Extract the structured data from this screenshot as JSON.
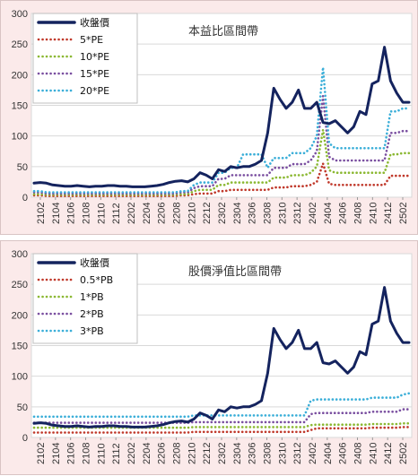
{
  "chart_data": [
    {
      "type": "line",
      "title": "本益比區間帶",
      "xlabel": "",
      "ylabel": "",
      "ylim": [
        0,
        300
      ],
      "yticks": [
        "0",
        "50",
        "100",
        "150",
        "200",
        "250",
        "300"
      ],
      "xtick_labels": [
        "2102",
        "2104",
        "2106",
        "2108",
        "2110",
        "2112",
        "2202",
        "2204",
        "2206",
        "2208",
        "2210",
        "2212",
        "2302",
        "2304",
        "2306",
        "2308",
        "2310",
        "2312",
        "2402",
        "2404",
        "2406",
        "2408",
        "2410",
        "2412",
        "2502"
      ],
      "grid": "horizontal",
      "legend_position": "top-left",
      "series": [
        {
          "name": "收盤價",
          "color": "#14235e",
          "style": "solid",
          "values": [
            23,
            24,
            23,
            20,
            19,
            18,
            18,
            19,
            18,
            17,
            18,
            18,
            19,
            19,
            18,
            18,
            17,
            17,
            17,
            18,
            19,
            21,
            24,
            26,
            27,
            25,
            30,
            40,
            36,
            30,
            45,
            42,
            50,
            48,
            50,
            50,
            54,
            60,
            105,
            178,
            160,
            145,
            155,
            175,
            145,
            145,
            155,
            122,
            120,
            125,
            115,
            105,
            115,
            140,
            135,
            185,
            190,
            245,
            190,
            170,
            155,
            155
          ]
        },
        {
          "name": "5*PE",
          "color": "#c0392b",
          "style": "dotted",
          "values": [
            3,
            3,
            2,
            2,
            2,
            2,
            2,
            2,
            2,
            2,
            2,
            2,
            2,
            2,
            2,
            2,
            2,
            2,
            2,
            2,
            2,
            2,
            2,
            2,
            3,
            3,
            5,
            6,
            6,
            6,
            10,
            10,
            12,
            12,
            12,
            12,
            12,
            12,
            12,
            16,
            16,
            16,
            18,
            18,
            18,
            20,
            25,
            55,
            22,
            20,
            20,
            20,
            20,
            20,
            20,
            20,
            20,
            20,
            35,
            35,
            35,
            35
          ]
        },
        {
          "name": "10*PE",
          "color": "#8bb832",
          "style": "dotted",
          "values": [
            5,
            5,
            4,
            4,
            4,
            4,
            4,
            4,
            4,
            4,
            4,
            4,
            4,
            4,
            4,
            4,
            4,
            4,
            4,
            4,
            4,
            4,
            4,
            4,
            5,
            5,
            10,
            12,
            12,
            12,
            20,
            20,
            24,
            24,
            24,
            24,
            24,
            24,
            24,
            32,
            32,
            32,
            36,
            36,
            36,
            40,
            50,
            110,
            44,
            40,
            40,
            40,
            40,
            40,
            40,
            40,
            40,
            40,
            70,
            70,
            72,
            72
          ]
        },
        {
          "name": "15*PE",
          "color": "#7a4fa0",
          "style": "dotted",
          "values": [
            8,
            8,
            6,
            6,
            6,
            6,
            6,
            6,
            6,
            6,
            6,
            6,
            6,
            6,
            6,
            6,
            6,
            6,
            6,
            6,
            6,
            6,
            6,
            6,
            8,
            8,
            15,
            18,
            18,
            18,
            30,
            30,
            36,
            36,
            36,
            36,
            36,
            36,
            36,
            48,
            48,
            48,
            54,
            54,
            54,
            60,
            75,
            165,
            66,
            60,
            60,
            60,
            60,
            60,
            60,
            60,
            60,
            60,
            105,
            105,
            108,
            108
          ]
        },
        {
          "name": "20*PE",
          "color": "#3aaed8",
          "style": "dotted",
          "values": [
            10,
            10,
            8,
            8,
            8,
            8,
            8,
            8,
            8,
            8,
            8,
            8,
            8,
            8,
            8,
            8,
            8,
            8,
            8,
            8,
            8,
            8,
            8,
            8,
            10,
            10,
            20,
            24,
            24,
            24,
            40,
            40,
            48,
            48,
            70,
            70,
            70,
            70,
            48,
            64,
            64,
            64,
            72,
            72,
            72,
            80,
            100,
            212,
            88,
            80,
            80,
            80,
            80,
            80,
            80,
            80,
            80,
            80,
            140,
            140,
            145,
            145
          ]
        }
      ]
    },
    {
      "type": "line",
      "title": "股價淨值比區間帶",
      "xlabel": "",
      "ylabel": "",
      "ylim": [
        0,
        300
      ],
      "yticks": [
        "0",
        "50",
        "100",
        "150",
        "200",
        "250",
        "300"
      ],
      "xtick_labels": [
        "2102",
        "2104",
        "2106",
        "2108",
        "2110",
        "2112",
        "2202",
        "2204",
        "2206",
        "2208",
        "2210",
        "2212",
        "2302",
        "2304",
        "2306",
        "2308",
        "2310",
        "2312",
        "2402",
        "2404",
        "2406",
        "2408",
        "2410",
        "2412",
        "2502"
      ],
      "grid": "horizontal",
      "legend_position": "top-left",
      "series": [
        {
          "name": "收盤價",
          "color": "#14235e",
          "style": "solid",
          "values": [
            23,
            24,
            23,
            20,
            19,
            18,
            18,
            19,
            18,
            17,
            18,
            18,
            19,
            19,
            18,
            18,
            17,
            17,
            17,
            18,
            19,
            21,
            24,
            26,
            27,
            25,
            30,
            40,
            36,
            30,
            45,
            42,
            50,
            48,
            50,
            50,
            54,
            60,
            105,
            178,
            160,
            145,
            155,
            175,
            145,
            145,
            155,
            122,
            120,
            125,
            115,
            105,
            115,
            140,
            135,
            185,
            190,
            245,
            190,
            170,
            155,
            155
          ]
        },
        {
          "name": "0.5*PB",
          "color": "#c0392b",
          "style": "dotted",
          "values": [
            8,
            8,
            8,
            8,
            8,
            8,
            8,
            8,
            8,
            8,
            8,
            8,
            8,
            8,
            8,
            8,
            8,
            8,
            8,
            8,
            8,
            8,
            8,
            8,
            8,
            8,
            9,
            9,
            9,
            9,
            9,
            9,
            9,
            9,
            9,
            9,
            9,
            9,
            9,
            9,
            9,
            9,
            9,
            9,
            9,
            12,
            15,
            15,
            15,
            15,
            15,
            15,
            15,
            15,
            15,
            16,
            16,
            16,
            16,
            16,
            17,
            17
          ]
        },
        {
          "name": "1*PB",
          "color": "#8bb832",
          "style": "dotted",
          "values": [
            16,
            16,
            16,
            16,
            16,
            16,
            16,
            16,
            16,
            16,
            16,
            16,
            16,
            16,
            16,
            16,
            16,
            16,
            16,
            16,
            16,
            16,
            16,
            16,
            16,
            16,
            17,
            17,
            17,
            17,
            17,
            17,
            17,
            17,
            17,
            17,
            17,
            17,
            17,
            17,
            17,
            17,
            17,
            17,
            17,
            20,
            21,
            21,
            21,
            21,
            21,
            21,
            21,
            21,
            21,
            22,
            22,
            22,
            22,
            22,
            23,
            23
          ]
        },
        {
          "name": "2*PB",
          "color": "#7a4fa0",
          "style": "dotted",
          "values": [
            24,
            24,
            24,
            24,
            24,
            24,
            24,
            24,
            24,
            24,
            24,
            24,
            24,
            24,
            24,
            24,
            24,
            24,
            24,
            24,
            24,
            24,
            24,
            24,
            24,
            24,
            25,
            25,
            25,
            25,
            25,
            25,
            25,
            25,
            25,
            25,
            25,
            25,
            25,
            25,
            25,
            25,
            25,
            25,
            25,
            38,
            40,
            40,
            40,
            40,
            40,
            40,
            40,
            40,
            40,
            42,
            42,
            42,
            42,
            42,
            46,
            46
          ]
        },
        {
          "name": "3*PB",
          "color": "#3aaed8",
          "style": "dotted",
          "values": [
            34,
            34,
            34,
            34,
            34,
            34,
            34,
            34,
            34,
            34,
            34,
            34,
            34,
            34,
            34,
            34,
            34,
            34,
            34,
            34,
            34,
            34,
            34,
            34,
            34,
            34,
            36,
            36,
            36,
            36,
            36,
            36,
            36,
            36,
            36,
            36,
            36,
            36,
            36,
            36,
            36,
            36,
            36,
            36,
            36,
            60,
            62,
            62,
            62,
            62,
            62,
            62,
            62,
            62,
            62,
            65,
            65,
            65,
            65,
            65,
            70,
            72
          ]
        }
      ]
    }
  ]
}
